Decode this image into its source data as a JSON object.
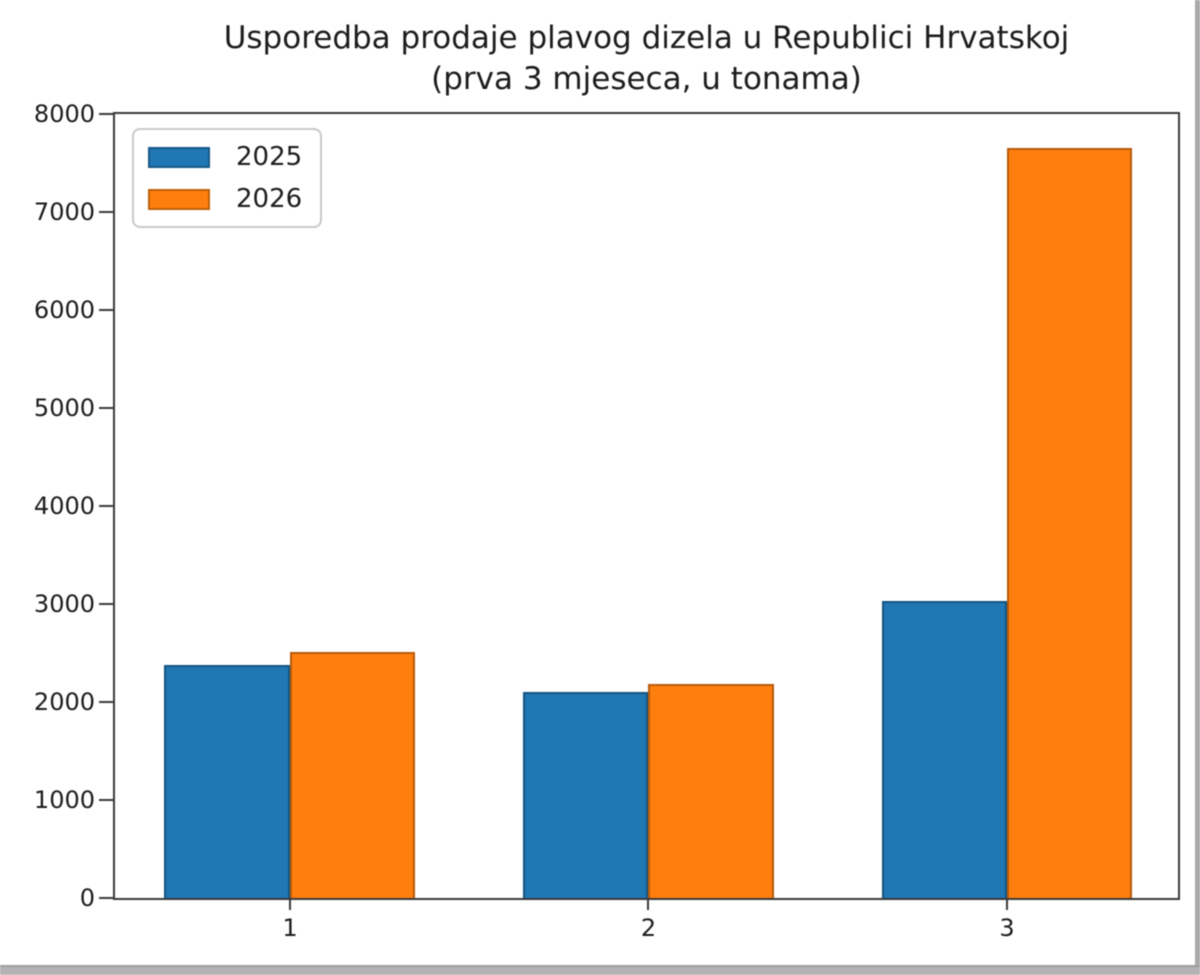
{
  "figure": {
    "title_line1": "Usporedba prodaje plavog dizela u Republici Hrvatskoj",
    "title_line2": "(prva 3 mjeseca, u tonama)"
  },
  "chart_data": {
    "type": "bar",
    "title": "Usporedba prodaje plavog dizela u Republici Hrvatskoj (prva 3 mjeseca, u tonama)",
    "categories": [
      "1",
      "2",
      "3"
    ],
    "x": [
      1,
      2,
      3
    ],
    "series": [
      {
        "name": "2025",
        "color": "#1f77b4",
        "values": [
          2380,
          2100,
          3030
        ]
      },
      {
        "name": "2026",
        "color": "#ff7f0e",
        "values": [
          2510,
          2180,
          7650
        ]
      }
    ],
    "xlabel": "",
    "ylabel": "",
    "ylim": [
      0,
      8000
    ],
    "yticks": [
      0,
      1000,
      2000,
      3000,
      4000,
      5000,
      6000,
      7000,
      8000
    ],
    "bar_width_units": 0.35,
    "legend_position": "upper left",
    "grid": false,
    "axis_color": "#3a3a3a",
    "text_color": "#1c1c1c",
    "background_color": "#ffffff"
  }
}
